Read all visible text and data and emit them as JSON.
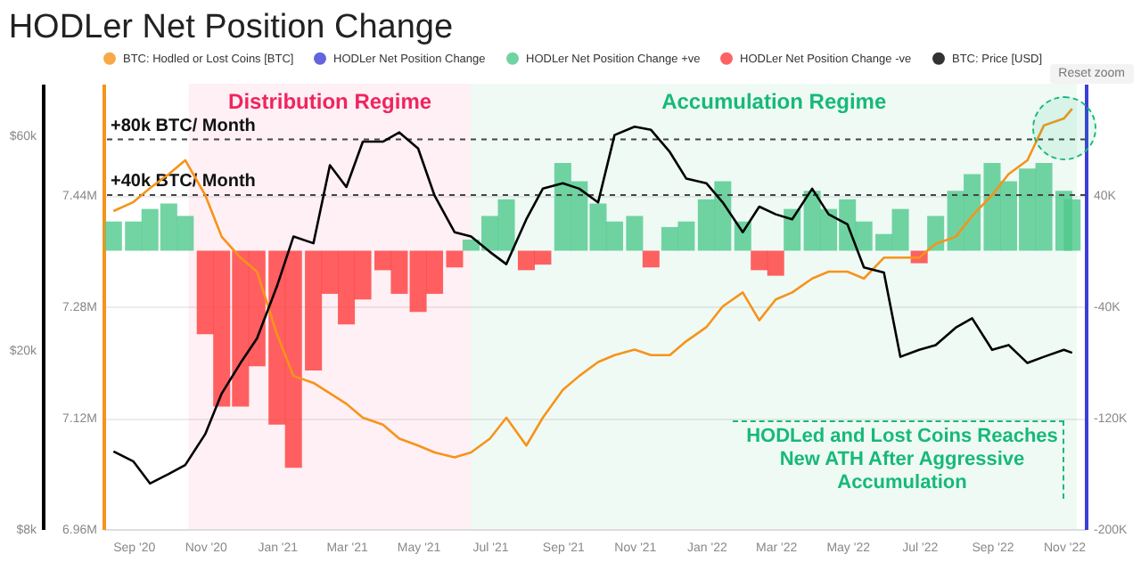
{
  "chart_data": {
    "type": "bar",
    "title": "HODLer Net Position Change",
    "x": [
      "2020-08-15",
      "2020-09-01",
      "2020-09-15",
      "2020-10-01",
      "2020-10-15",
      "2020-11-01",
      "2020-11-15",
      "2020-12-01",
      "2020-12-15",
      "2021-01-01",
      "2021-01-15",
      "2021-02-01",
      "2021-02-15",
      "2021-03-01",
      "2021-03-15",
      "2021-04-01",
      "2021-04-15",
      "2021-05-01",
      "2021-05-15",
      "2021-06-01",
      "2021-06-15",
      "2021-07-01",
      "2021-07-15",
      "2021-08-01",
      "2021-08-15",
      "2021-09-01",
      "2021-09-15",
      "2021-10-01",
      "2021-10-15",
      "2021-11-01",
      "2021-11-15",
      "2021-12-01",
      "2021-12-15",
      "2022-01-01",
      "2022-01-15",
      "2022-02-01",
      "2022-02-15",
      "2022-03-01",
      "2022-03-15",
      "2022-04-01",
      "2022-04-15",
      "2022-05-01",
      "2022-05-15",
      "2022-06-01",
      "2022-06-15",
      "2022-07-01",
      "2022-07-15",
      "2022-08-01",
      "2022-08-15",
      "2022-09-01",
      "2022-09-15",
      "2022-10-01",
      "2022-10-15",
      "2022-11-01",
      "2022-11-08"
    ],
    "series": [
      {
        "name": "BTC: Hodled or Lost Coins [BTC]",
        "type": "line",
        "axis": "y",
        "color": "#f7931a",
        "values": [
          7417000,
          7430000,
          7450000,
          7470000,
          7490000,
          7440000,
          7380000,
          7350000,
          7330000,
          7240000,
          7180000,
          7170000,
          7155000,
          7140000,
          7120000,
          7110000,
          7090000,
          7080000,
          7070000,
          7063000,
          7070000,
          7090000,
          7120000,
          7080000,
          7120000,
          7160000,
          7180000,
          7200000,
          7210000,
          7218000,
          7210000,
          7210000,
          7230000,
          7250000,
          7280000,
          7300000,
          7260000,
          7290000,
          7300000,
          7320000,
          7330000,
          7330000,
          7320000,
          7350000,
          7350000,
          7350000,
          7370000,
          7380000,
          7410000,
          7440000,
          7470000,
          7490000,
          7540000,
          7550000,
          7564000
        ]
      },
      {
        "name": "HODLer Net Position Change",
        "axis": "y3",
        "color": "#3b3fd6",
        "values": [
          null,
          null,
          null,
          null,
          null,
          null,
          null,
          null,
          null,
          null,
          null,
          null,
          null,
          null,
          null,
          null,
          null,
          null,
          null,
          null,
          null,
          null,
          null,
          null,
          null,
          null,
          null,
          null,
          null,
          null,
          null,
          null,
          null,
          null,
          null,
          null,
          null,
          null,
          null,
          null,
          null,
          null,
          null,
          null,
          null,
          null,
          null,
          null,
          null,
          null,
          null,
          null,
          null,
          null,
          null
        ]
      },
      {
        "name": "HODLer Net Position Change +ve",
        "axis": "y3",
        "color": "#4fc98c",
        "values": [
          21000,
          21000,
          30000,
          34000,
          25000,
          null,
          null,
          null,
          null,
          null,
          null,
          null,
          null,
          null,
          null,
          null,
          null,
          null,
          null,
          null,
          8000,
          25000,
          37000,
          null,
          null,
          63000,
          50000,
          34000,
          21000,
          25000,
          null,
          17000,
          21000,
          37000,
          50000,
          21000,
          null,
          null,
          30000,
          43000,
          30000,
          37000,
          21000,
          12000,
          30000,
          null,
          25000,
          43000,
          55000,
          63000,
          50000,
          59000,
          63000,
          43000,
          37000
        ]
      },
      {
        "name": "HODLer Net Position Change -ve",
        "axis": "y3",
        "color": "#ff3b3b",
        "values": [
          null,
          null,
          null,
          null,
          null,
          -60000,
          -112000,
          -112000,
          -83000,
          -125000,
          -156000,
          -86000,
          -31000,
          -53000,
          -35000,
          -14000,
          -31000,
          -44000,
          -31000,
          -12000,
          null,
          null,
          null,
          -14000,
          -10000,
          null,
          null,
          null,
          null,
          null,
          -12000,
          null,
          null,
          null,
          null,
          null,
          -14000,
          -18000,
          null,
          null,
          null,
          null,
          null,
          null,
          null,
          -9000,
          null,
          null,
          null,
          null,
          null,
          null,
          null,
          null,
          null
        ]
      },
      {
        "name": "BTC: Price [USD]",
        "type": "line",
        "axis": "y2",
        "color": "#000000",
        "values": [
          11900,
          11300,
          10100,
          10600,
          11100,
          13000,
          16000,
          18700,
          21200,
          27700,
          35700,
          34500,
          51400,
          46000,
          58000,
          58000,
          60800,
          56000,
          44000,
          36500,
          35700,
          33000,
          31000,
          39000,
          45600,
          46900,
          45600,
          42500,
          60000,
          62600,
          61600,
          55000,
          48000,
          46900,
          42500,
          36500,
          41600,
          40000,
          39000,
          45600,
          40000,
          38000,
          30500,
          29700,
          19300,
          20000,
          20500,
          22400,
          23500,
          20000,
          20500,
          18700,
          19300,
          20000,
          19700
        ]
      }
    ],
    "xlim": [
      "2020-08-14",
      "2022-11-12"
    ],
    "xticks": [
      {
        "value": "2020-09-01",
        "label": "Sep '20"
      },
      {
        "value": "2020-11-01",
        "label": "Nov '20"
      },
      {
        "value": "2021-01-01",
        "label": "Jan '21"
      },
      {
        "value": "2021-03-01",
        "label": "Mar '21"
      },
      {
        "value": "2021-05-01",
        "label": "May '21"
      },
      {
        "value": "2021-07-01",
        "label": "Jul '21"
      },
      {
        "value": "2021-09-01",
        "label": "Sep '21"
      },
      {
        "value": "2021-11-01",
        "label": "Nov '21"
      },
      {
        "value": "2022-01-01",
        "label": "Jan '22"
      },
      {
        "value": "2022-03-01",
        "label": "Mar '22"
      },
      {
        "value": "2022-05-01",
        "label": "May '22"
      },
      {
        "value": "2022-07-01",
        "label": "Jul '22"
      },
      {
        "value": "2022-09-01",
        "label": "Sep '22"
      },
      {
        "value": "2022-11-01",
        "label": "Nov '22"
      }
    ],
    "ylim": [
      6960000,
      7600000
    ],
    "yticks": [
      {
        "value": 6960000,
        "label": "6.96M"
      },
      {
        "value": 7120000,
        "label": "7.12M"
      },
      {
        "value": 7280000,
        "label": "7.28M"
      },
      {
        "value": 7440000,
        "label": "7.44M"
      }
    ],
    "y2lim": [
      8000,
      78000
    ],
    "y2ticks": [
      {
        "value": 8000,
        "label": "$8k"
      },
      {
        "value": 20000,
        "label": "$20k"
      },
      {
        "value": 60000,
        "label": "$60k"
      }
    ],
    "y3lim": [
      -200000,
      120000
    ],
    "y3ticks": [
      {
        "value": -200000,
        "label": "-200K"
      },
      {
        "value": -120000,
        "label": "-120K"
      },
      {
        "value": -40000,
        "label": "-40K"
      },
      {
        "value": 40000,
        "label": "40K"
      }
    ],
    "log": "y2",
    "grid": "y",
    "legend": "top",
    "ref_lines": [
      {
        "axis": "y3",
        "value": 80000,
        "label": "+80k BTC/ Month",
        "color": "#444444",
        "line_style": "dashed"
      },
      {
        "axis": "y3",
        "value": 40000,
        "label": "+40k BTC/ Month",
        "color": "#444444",
        "line_style": "dashed"
      }
    ],
    "bands": [
      {
        "axis": "x",
        "from": "2020-10-18",
        "to": "2021-06-15",
        "label": "Distribution Regime",
        "color": "#f0245e"
      },
      {
        "axis": "x",
        "from": "2021-06-15",
        "to": "2022-11-12",
        "label": "Accumulation Regime",
        "color": "#17b978"
      }
    ],
    "annotations": [
      "Reset zoom",
      "HODLed and Lost Coins Reaches New ATH After Aggressive Accumulation"
    ]
  }
}
